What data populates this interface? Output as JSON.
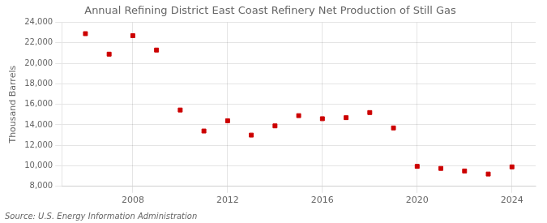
{
  "chart_data": {
    "type": "scatter",
    "title": "Annual Refining District East Coast Refinery Net Production of Still Gas",
    "ylabel": "Thousand Barrels",
    "annotations": [
      "Source: U.S. Energy Information Administration"
    ],
    "x": [
      2006,
      2007,
      2008,
      2009,
      2010,
      2011,
      2012,
      2013,
      2014,
      2015,
      2016,
      2017,
      2018,
      2019,
      2020,
      2021,
      2022,
      2023,
      2024
    ],
    "values": [
      22900,
      20900,
      22700,
      21300,
      15450,
      13400,
      14400,
      13000,
      13900,
      14900,
      14600,
      14700,
      15200,
      13700,
      9950,
      9750,
      9500,
      9200,
      9900
    ],
    "color": "#cc0000",
    "marker": "square",
    "xlim": [
      2005,
      2025
    ],
    "xticks": [
      2008,
      2012,
      2016,
      2020,
      2024
    ],
    "ylim": [
      8000,
      24000
    ],
    "yticks": [
      {
        "value": 8000,
        "label": "8,000"
      },
      {
        "value": 10000,
        "label": "10,000"
      },
      {
        "value": 12000,
        "label": "12,000"
      },
      {
        "value": 14000,
        "label": "14,000"
      },
      {
        "value": 16000,
        "label": "16,000"
      },
      {
        "value": 18000,
        "label": "18,000"
      },
      {
        "value": 20000,
        "label": "20,000"
      },
      {
        "value": 22000,
        "label": "22,000"
      },
      {
        "value": 24000,
        "label": "24,000"
      }
    ],
    "grid": true
  }
}
